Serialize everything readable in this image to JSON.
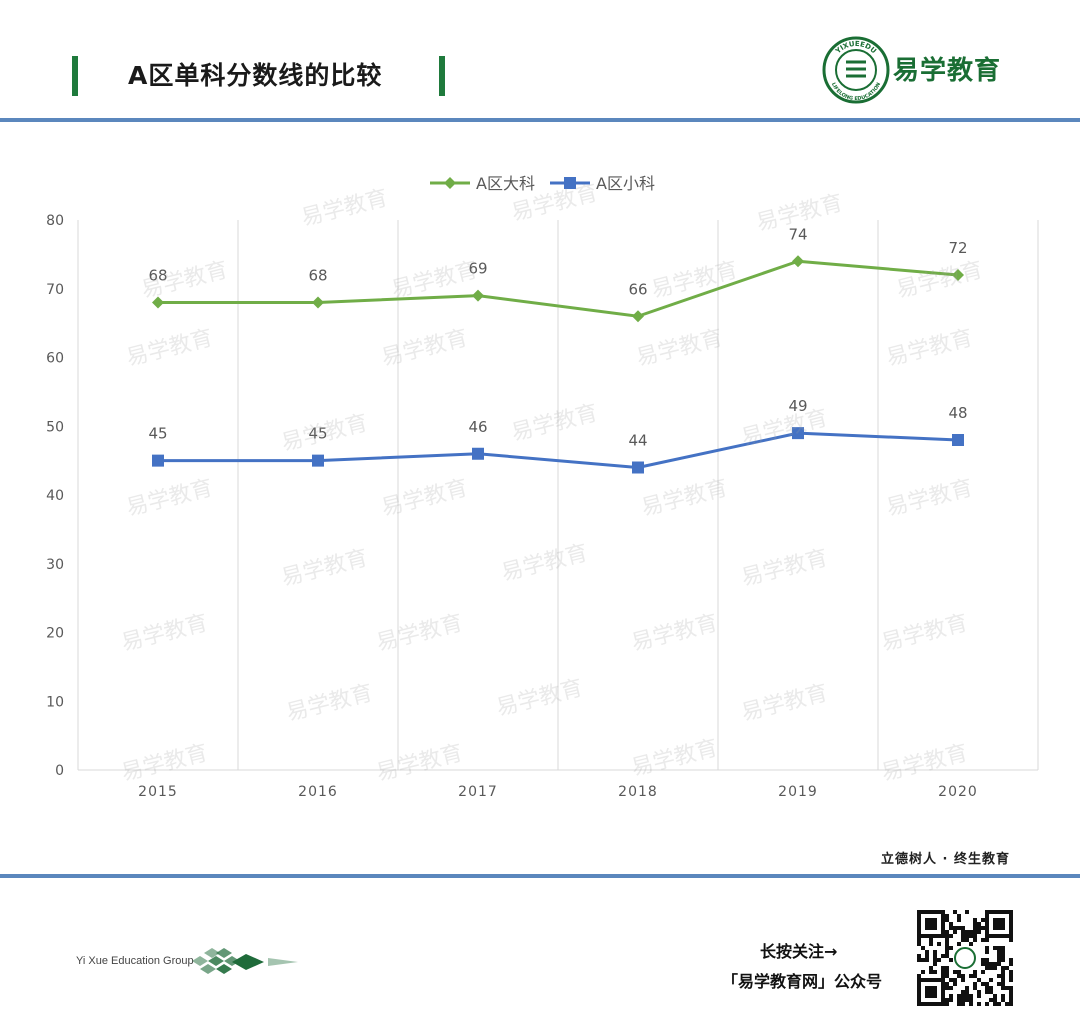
{
  "header": {
    "title": "A区单科分数线的比较",
    "brand_name": "易学教育",
    "logo_ring_text_top": "YIXUEEDU",
    "logo_ring_text_bottom": "LIFELONG EDUCATION"
  },
  "colors": {
    "accent_green": "#1f7a3c",
    "rule_blue": "#5b87bd",
    "series_green": "#70ad47",
    "series_blue": "#4472c4"
  },
  "chart_data": {
    "type": "line",
    "title": "",
    "xlabel": "",
    "ylabel": "",
    "categories": [
      "2015",
      "2016",
      "2017",
      "2018",
      "2019",
      "2020"
    ],
    "ylim": [
      0,
      80
    ],
    "yticks": [
      0,
      10,
      20,
      30,
      40,
      50,
      60,
      70,
      80
    ],
    "grid": "vertical",
    "legend_position": "top-center",
    "series": [
      {
        "name": "A区大科",
        "values": [
          68,
          68,
          69,
          66,
          74,
          72
        ],
        "marker": "diamond",
        "color": "#70ad47"
      },
      {
        "name": "A区小科",
        "values": [
          45,
          45,
          46,
          44,
          49,
          48
        ],
        "marker": "square",
        "color": "#4472c4"
      }
    ],
    "data_labels": true
  },
  "watermark_text": "易学教育",
  "footer": {
    "motto": "立德树人 · 终生教育",
    "group_name": "Yi Xue Education Group",
    "qr_line1": "长按关注→",
    "qr_line2": "「易学教育网」公众号"
  }
}
